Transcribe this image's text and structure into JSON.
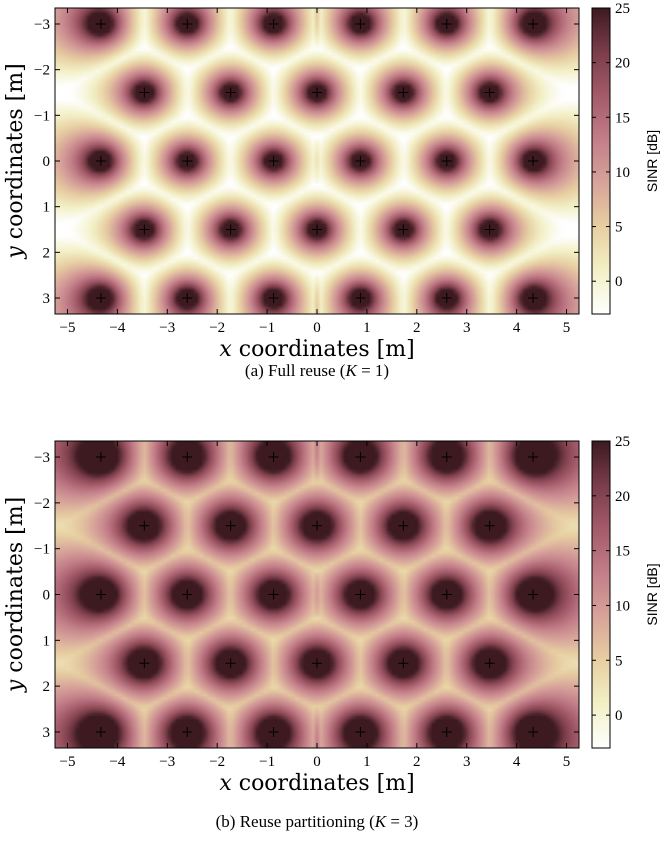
{
  "colors": {
    "colormap": [
      "#ffffff",
      "#f3f0c6",
      "#e7cfa2",
      "#d7a39a",
      "#c27e88",
      "#a35a69",
      "#7a3d49",
      "#3c1a20"
    ]
  },
  "chart_data": [
    {
      "type": "heatmap",
      "title": "",
      "caption": "(a) Full reuse (K = 1)",
      "caption_parts": {
        "prefix": "(a) Full reuse (",
        "var": "K",
        "rest": " = 1)"
      },
      "xlabel": {
        "var": "x",
        "text": " coordinates [m]"
      },
      "ylabel": {
        "var": "y",
        "text": " coordinates [m]"
      },
      "xlim": [
        -5.25,
        5.25
      ],
      "ylim": [
        -3.35,
        3.35
      ],
      "y_reversed": true,
      "xticks": [
        -5,
        -4,
        -3,
        -2,
        -1,
        0,
        1,
        2,
        3,
        4,
        5
      ],
      "yticks": [
        -3,
        -2,
        -1,
        0,
        1,
        2,
        3
      ],
      "colorbar": {
        "label": "SINR [dB]",
        "range": [
          -3,
          25
        ],
        "ticks": [
          0,
          5,
          10,
          15,
          20,
          25
        ]
      },
      "reuse_factor": 1,
      "base_stations": [
        [
          -4.33,
          -3
        ],
        [
          -2.6,
          -3
        ],
        [
          -0.87,
          -3
        ],
        [
          0.87,
          -3
        ],
        [
          2.6,
          -3
        ],
        [
          4.33,
          -3
        ],
        [
          -3.46,
          -1.5
        ],
        [
          -1.73,
          -1.5
        ],
        [
          0,
          -1.5
        ],
        [
          1.73,
          -1.5
        ],
        [
          3.46,
          -1.5
        ],
        [
          -4.33,
          0
        ],
        [
          -2.6,
          0
        ],
        [
          -0.87,
          0
        ],
        [
          0.87,
          0
        ],
        [
          2.6,
          0
        ],
        [
          4.33,
          0
        ],
        [
          -3.46,
          1.5
        ],
        [
          -1.73,
          1.5
        ],
        [
          0,
          1.5
        ],
        [
          1.73,
          1.5
        ],
        [
          3.46,
          1.5
        ],
        [
          -4.33,
          3
        ],
        [
          -2.6,
          3
        ],
        [
          -0.87,
          3
        ],
        [
          0.87,
          3
        ],
        [
          2.6,
          3
        ],
        [
          4.33,
          3
        ]
      ]
    },
    {
      "type": "heatmap",
      "title": "",
      "caption": "(b) Reuse partitioning (K = 3)",
      "caption_parts": {
        "prefix": "(b) Reuse partitioning (",
        "var": "K",
        "rest": " = 3)"
      },
      "xlabel": {
        "var": "x",
        "text": " coordinates [m]"
      },
      "ylabel": {
        "var": "y",
        "text": " coordinates [m]"
      },
      "xlim": [
        -5.25,
        5.25
      ],
      "ylim": [
        -3.35,
        3.35
      ],
      "y_reversed": true,
      "xticks": [
        -5,
        -4,
        -3,
        -2,
        -1,
        0,
        1,
        2,
        3,
        4,
        5
      ],
      "yticks": [
        -3,
        -2,
        -1,
        0,
        1,
        2,
        3
      ],
      "colorbar": {
        "label": "SINR [dB]",
        "range": [
          -3,
          25
        ],
        "ticks": [
          0,
          5,
          10,
          15,
          20,
          25
        ]
      },
      "reuse_factor": 3,
      "base_stations": [
        [
          -4.33,
          -3
        ],
        [
          -2.6,
          -3
        ],
        [
          -0.87,
          -3
        ],
        [
          0.87,
          -3
        ],
        [
          2.6,
          -3
        ],
        [
          4.33,
          -3
        ],
        [
          -3.46,
          -1.5
        ],
        [
          -1.73,
          -1.5
        ],
        [
          0,
          -1.5
        ],
        [
          1.73,
          -1.5
        ],
        [
          3.46,
          -1.5
        ],
        [
          -4.33,
          0
        ],
        [
          -2.6,
          0
        ],
        [
          -0.87,
          0
        ],
        [
          0.87,
          0
        ],
        [
          2.6,
          0
        ],
        [
          4.33,
          0
        ],
        [
          -3.46,
          1.5
        ],
        [
          -1.73,
          1.5
        ],
        [
          0,
          1.5
        ],
        [
          1.73,
          1.5
        ],
        [
          3.46,
          1.5
        ],
        [
          -4.33,
          3
        ],
        [
          -2.6,
          3
        ],
        [
          -0.87,
          3
        ],
        [
          0.87,
          3
        ],
        [
          2.6,
          3
        ],
        [
          4.33,
          3
        ]
      ]
    }
  ]
}
